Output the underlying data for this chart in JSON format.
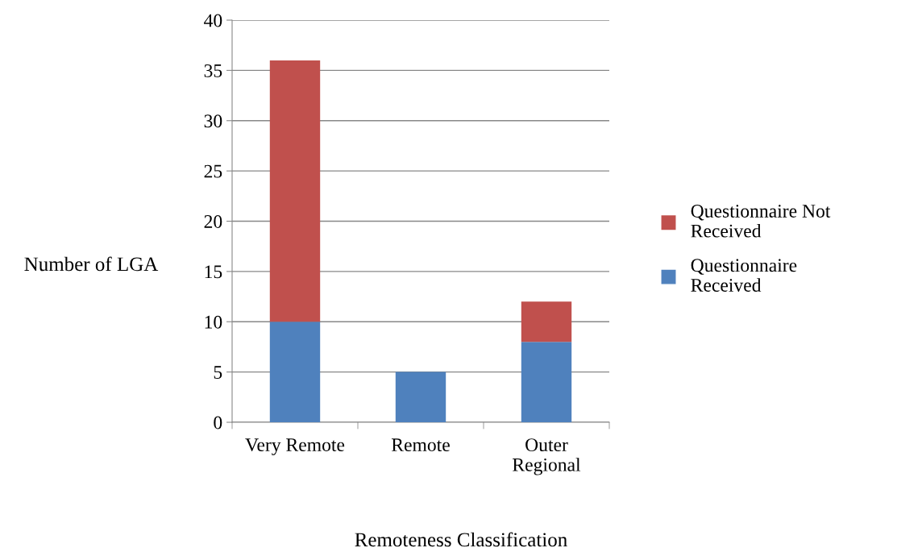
{
  "chart_data": {
    "type": "bar",
    "stacked": true,
    "xlabel": "Remoteness Classification",
    "ylabel": "Number of LGA",
    "categories": [
      "Very Remote",
      "Remote",
      "Outer\nRegional"
    ],
    "series": [
      {
        "name": "Questionnaire\nReceived",
        "color": "#4f81bd",
        "values": [
          10,
          5,
          8
        ]
      },
      {
        "name": "Questionnaire Not\nReceived",
        "color": "#c0504d",
        "values": [
          26,
          0,
          4
        ]
      }
    ],
    "ylim": [
      0,
      40
    ],
    "yticks": [
      0,
      5,
      10,
      15,
      20,
      25,
      30,
      35,
      40
    ],
    "grid": "y",
    "legend": "right"
  }
}
